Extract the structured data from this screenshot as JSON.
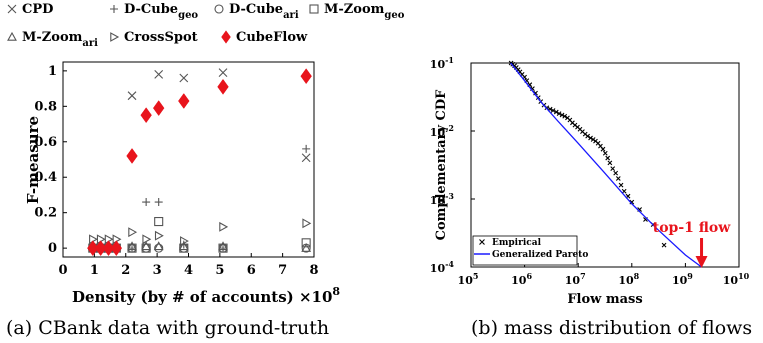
{
  "chart_data": [
    {
      "type": "scatter",
      "xlabel": "Density (by # of accounts) ×10",
      "xlabel_exp": "8",
      "ylabel": "F-measure",
      "xlim": [
        0,
        8
      ],
      "ylim": [
        -0.05,
        1.05
      ],
      "x_ticks": [
        "0",
        "1",
        "2",
        "3",
        "4",
        "5",
        "6",
        "7",
        "8"
      ],
      "y_ticks": [
        "0",
        "0.2",
        "0.4",
        "0.6",
        "0.8",
        "1"
      ],
      "legend_placement": "top",
      "series": [
        {
          "name": "CPD",
          "marker": "x",
          "color": "#555555",
          "x": [
            0.95,
            1.2,
            1.45,
            1.7,
            2.2,
            3.05,
            3.85,
            5.1,
            7.75
          ],
          "y": [
            0,
            0,
            0,
            0,
            0.86,
            0.98,
            0.96,
            0.99,
            0.51
          ]
        },
        {
          "name": "D-Cube",
          "sub": "geo",
          "marker": "plus",
          "color": "#555555",
          "x": [
            0.95,
            1.2,
            1.45,
            1.7,
            2.2,
            2.65,
            3.05,
            3.85,
            5.1,
            7.75
          ],
          "y": [
            0,
            0,
            0,
            0,
            0,
            0.26,
            0.26,
            0.02,
            0,
            0.56
          ]
        },
        {
          "name": "D-Cube",
          "sub": "ari",
          "marker": "circle",
          "color": "#555555",
          "x": [
            0.95,
            1.2,
            1.45,
            1.7,
            2.2,
            2.65,
            3.05,
            3.85,
            5.1,
            7.75
          ],
          "y": [
            0,
            0,
            0,
            0,
            0,
            0,
            0,
            0,
            0,
            0
          ]
        },
        {
          "name": "M-Zoom",
          "sub": "geo",
          "marker": "square",
          "color": "#555555",
          "x": [
            0.95,
            1.2,
            1.45,
            1.7,
            2.2,
            2.65,
            3.05,
            3.85,
            5.1,
            7.75
          ],
          "y": [
            0,
            0,
            0,
            0,
            0,
            0,
            0.15,
            0,
            0,
            0.03
          ]
        },
        {
          "name": "M-Zoom",
          "sub": "ari",
          "marker": "triangle-up",
          "color": "#555555",
          "x": [
            0.95,
            1.2,
            1.45,
            1.7,
            2.2,
            2.65,
            3.05,
            3.85,
            5.1,
            7.75
          ],
          "y": [
            0.01,
            0.01,
            0.01,
            0.01,
            0.01,
            0.01,
            0.01,
            0.01,
            0.01,
            0
          ]
        },
        {
          "name": "CrossSpot",
          "marker": "triangle-right",
          "color": "#555555",
          "x": [
            0.95,
            1.2,
            1.45,
            1.7,
            2.2,
            2.65,
            3.05,
            3.85,
            5.1,
            7.75
          ],
          "y": [
            0.05,
            0.05,
            0.05,
            0.05,
            0.09,
            0.05,
            0.07,
            0.04,
            0.12,
            0.14
          ]
        },
        {
          "name": "CubeFlow",
          "marker": "diamond",
          "color": "#e8141c",
          "x": [
            0.95,
            1.2,
            1.45,
            1.7,
            2.2,
            2.65,
            3.05,
            3.85,
            5.1,
            7.75
          ],
          "y": [
            0,
            0,
            0,
            0,
            0.52,
            0.75,
            0.79,
            0.83,
            0.91,
            0.97
          ]
        }
      ]
    },
    {
      "type": "line",
      "xlabel": "Flow mass",
      "ylabel": "Complementary CDF",
      "xscale": "log",
      "yscale": "log",
      "xlim": [
        100000,
        10000000000
      ],
      "ylim": [
        0.0001,
        0.1
      ],
      "x_ticks": [
        {
          "b": "10",
          "e": "5"
        },
        {
          "b": "10",
          "e": "6"
        },
        {
          "b": "10",
          "e": "7"
        },
        {
          "b": "10",
          "e": "8"
        },
        {
          "b": "10",
          "e": "9"
        },
        {
          "b": "10",
          "e": "10"
        }
      ],
      "y_ticks": [
        {
          "b": "10",
          "e": "-4"
        },
        {
          "b": "10",
          "e": "-3"
        },
        {
          "b": "10",
          "e": "-2"
        },
        {
          "b": "10",
          "e": "-1"
        }
      ],
      "legend_placement": "bottom-left",
      "annotation": "top-1 flow",
      "annotation_x": 2000000000,
      "series": [
        {
          "name": "Empirical",
          "marker": "x",
          "color": "#000000",
          "x": [
            560000,
            600000,
            650000,
            700000,
            760000,
            820000,
            900000,
            1000000,
            1100000,
            1250000,
            1400000,
            1600000,
            1800000,
            2000000,
            2300000,
            2600000,
            3000000,
            3400000,
            3900000,
            4400000,
            5000000,
            5600000,
            6300000,
            7000000,
            7800000,
            8700000,
            9700000,
            10800000,
            12000000,
            13500000,
            15000000,
            17000000,
            19000000,
            21000000,
            23500000,
            26000000,
            29000000,
            32000000,
            35500000,
            39000000,
            44000000,
            50000000,
            56000000,
            63000000,
            72000000,
            85000000,
            100000000,
            140000000,
            180000000,
            250000000,
            400000000
          ],
          "y": [
            0.1,
            0.096,
            0.091,
            0.086,
            0.08,
            0.074,
            0.068,
            0.062,
            0.055,
            0.048,
            0.042,
            0.036,
            0.031,
            0.027,
            0.024,
            0.022,
            0.021,
            0.02,
            0.019,
            0.018,
            0.0172,
            0.0165,
            0.0156,
            0.0145,
            0.0132,
            0.0122,
            0.0114,
            0.0106,
            0.0098,
            0.009,
            0.0084,
            0.0079,
            0.0075,
            0.0071,
            0.0066,
            0.006,
            0.0054,
            0.0047,
            0.004,
            0.0034,
            0.0028,
            0.0024,
            0.002,
            0.0016,
            0.0013,
            0.0011,
            0.0009,
            0.0007,
            0.0005,
            0.00042,
            0.00021
          ]
        },
        {
          "name": "Generalized Pareto",
          "marker": "line",
          "color": "#1a1aff",
          "x": [
            550000,
            1000000,
            2000000,
            4000000,
            10000000,
            30000000,
            100000000,
            300000000,
            1000000000,
            2000000000
          ],
          "y": [
            0.1,
            0.055,
            0.027,
            0.0145,
            0.0066,
            0.0025,
            0.00085,
            0.00036,
            0.00015,
            0.0001
          ]
        }
      ]
    }
  ],
  "captions": [
    "(a) CBank data with ground-truth",
    "(b) mass distribution of flows"
  ]
}
